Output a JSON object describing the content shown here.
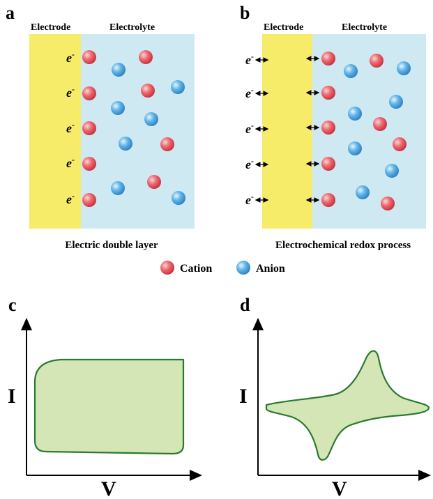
{
  "panels": {
    "a": {
      "letter": "a",
      "electrode_label": "Electrode",
      "electrolyte_label": "Electrolyte",
      "electron_label": "e",
      "caption": "Electric double layer"
    },
    "b": {
      "letter": "b",
      "electrode_label": "Electrode",
      "electrolyte_label": "Electrolyte",
      "electron_label": "e",
      "caption": "Electrochemical redox process"
    },
    "c": {
      "letter": "c",
      "y_axis": "I",
      "x_axis": "V"
    },
    "d": {
      "letter": "d",
      "y_axis": "I",
      "x_axis": "V"
    }
  },
  "legend": {
    "cation": "Cation",
    "anion": "Anion"
  },
  "colors": {
    "electrode": "#f6ec6a",
    "electrolyte": "#cfe9f2",
    "cation": "#e2474f",
    "anion": "#3f97d6",
    "cv_fill": "#d4e6b5",
    "cv_stroke": "#2a7a2e"
  }
}
